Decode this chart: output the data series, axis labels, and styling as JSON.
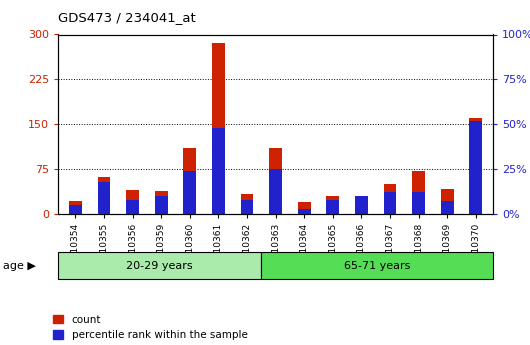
{
  "title": "GDS473 / 234041_at",
  "samples": [
    "GSM10354",
    "GSM10355",
    "GSM10356",
    "GSM10359",
    "GSM10360",
    "GSM10361",
    "GSM10362",
    "GSM10363",
    "GSM10364",
    "GSM10365",
    "GSM10366",
    "GSM10367",
    "GSM10368",
    "GSM10369",
    "GSM10370"
  ],
  "count_values": [
    22,
    62,
    40,
    38,
    110,
    285,
    33,
    110,
    20,
    30,
    28,
    50,
    72,
    42,
    160
  ],
  "percentile_values": [
    5,
    18,
    8,
    10,
    24,
    48,
    8,
    25,
    3,
    8,
    10,
    12,
    12,
    7,
    52
  ],
  "group1_label": "20-29 years",
  "group1_count": 7,
  "group2_label": "65-71 years",
  "group2_count": 8,
  "age_label": "age",
  "left_ylim": [
    0,
    300
  ],
  "right_ylim": [
    0,
    100
  ],
  "left_yticks": [
    0,
    75,
    150,
    225,
    300
  ],
  "right_yticks": [
    0,
    25,
    50,
    75,
    100
  ],
  "right_yticklabels": [
    "0%",
    "25%",
    "50%",
    "75%",
    "100%"
  ],
  "bar_color_red": "#cc2200",
  "bar_color_blue": "#2222cc",
  "group1_bg": "#aaeaaa",
  "group2_bg": "#55dd55",
  "plot_bg": "#ffffff",
  "axes_bg": "#ffffff",
  "grid_color": "#000000",
  "legend_count_label": "count",
  "legend_pct_label": "percentile rank within the sample",
  "bar_width": 0.45
}
